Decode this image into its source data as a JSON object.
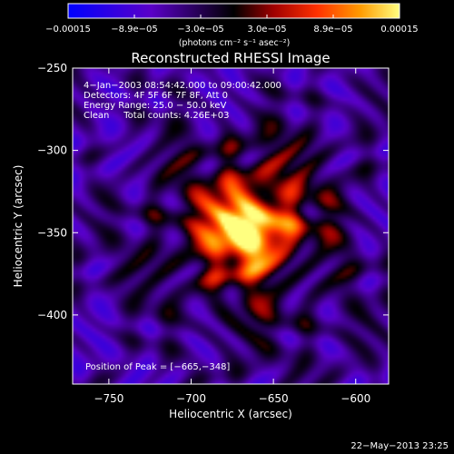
{
  "chart_data": {
    "type": "heatmap",
    "title": "Reconstructed RHESSI Image",
    "xlabel": "Heliocentric X (arcsec)",
    "ylabel": "Heliocentric Y (arcsec)",
    "xlim": [
      -772,
      -580
    ],
    "ylim": [
      -442,
      -250
    ],
    "x_ticks": [
      -750,
      -700,
      -650,
      -600
    ],
    "x_tick_labels": [
      "−750",
      "−700",
      "−650",
      "−600"
    ],
    "y_ticks": [
      -250,
      -300,
      -350,
      -400
    ],
    "y_tick_labels": [
      "−250",
      "−300",
      "−350",
      "−400"
    ],
    "colorbar": {
      "range": [
        -0.00015,
        0.00015
      ],
      "tick_labels": [
        "−0.00015",
        "−8.9e−05",
        "−3.0e−05",
        "3.0e−05",
        "8.9e−05",
        "0.00015"
      ],
      "unit_label": "(photons cm⁻² s⁻¹ asec⁻²)"
    },
    "annotations": [
      "4−Jan−2003 08:54:42.000 to 09:00:42.000",
      "Detectors: 4F 5F 6F 7F 8F, Att 0",
      "Energy Range: 25.0 − 50.0 keV",
      "Clean     Total counts: 4.26E+03"
    ],
    "peak_label": "Position of Peak = [−665,−348]",
    "peak": [
      -665,
      -348
    ],
    "timestamp": "22−May−2013 23:25",
    "grid": false
  }
}
